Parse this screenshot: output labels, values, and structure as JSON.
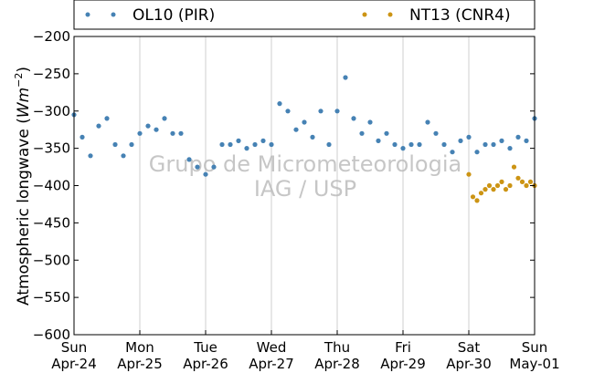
{
  "chart_data": {
    "type": "scatter",
    "ylabel_main": "Atmospheric longwave (",
    "ylabel_unit": "Wm",
    "ylabel_exp": "−2",
    "ylabel_close": ")",
    "ylim": [
      -600,
      -200
    ],
    "yticks": [
      -200,
      -250,
      -300,
      -350,
      -400,
      -450,
      -500,
      -550,
      -600
    ],
    "ytick_labels": [
      "−200",
      "−250",
      "−300",
      "−350",
      "−400",
      "−450",
      "−500",
      "−550",
      "−600"
    ],
    "xlim": [
      "2016-04-24T00:00",
      "2016-05-01T00:00"
    ],
    "xticks": [
      {
        "date": "2016-04-24",
        "day": "Sun",
        "label": "Apr-24"
      },
      {
        "date": "2016-04-25",
        "day": "Mon",
        "label": "Apr-25"
      },
      {
        "date": "2016-04-26",
        "day": "Tue",
        "label": "Apr-26"
      },
      {
        "date": "2016-04-27",
        "day": "Wed",
        "label": "Apr-27"
      },
      {
        "date": "2016-04-28",
        "day": "Thu",
        "label": "Apr-28"
      },
      {
        "date": "2016-04-29",
        "day": "Fri",
        "label": "Apr-29"
      },
      {
        "date": "2016-04-30",
        "day": "Sat",
        "label": "Apr-30"
      },
      {
        "date": "2016-05-01",
        "day": "Sun",
        "label": "May-01"
      }
    ],
    "grid": "vertical",
    "legend_position": "top",
    "watermark": [
      "Grupo de Micrometeorologia",
      "IAG / USP"
    ],
    "series": [
      {
        "name": "OL10 (PIR)",
        "color": "#4682b4",
        "x": [
          "2016-04-24T00:00",
          "2016-04-24T03:00",
          "2016-04-24T06:00",
          "2016-04-24T09:00",
          "2016-04-24T12:00",
          "2016-04-24T15:00",
          "2016-04-24T18:00",
          "2016-04-24T21:00",
          "2016-04-25T00:00",
          "2016-04-25T03:00",
          "2016-04-25T06:00",
          "2016-04-25T09:00",
          "2016-04-25T12:00",
          "2016-04-25T15:00",
          "2016-04-25T18:00",
          "2016-04-25T21:00",
          "2016-04-26T00:00",
          "2016-04-26T03:00",
          "2016-04-26T06:00",
          "2016-04-26T09:00",
          "2016-04-26T12:00",
          "2016-04-26T15:00",
          "2016-04-26T18:00",
          "2016-04-26T21:00",
          "2016-04-27T00:00",
          "2016-04-27T03:00",
          "2016-04-27T06:00",
          "2016-04-27T09:00",
          "2016-04-27T12:00",
          "2016-04-27T15:00",
          "2016-04-27T18:00",
          "2016-04-27T21:00",
          "2016-04-28T00:00",
          "2016-04-28T03:00",
          "2016-04-28T06:00",
          "2016-04-28T09:00",
          "2016-04-28T12:00",
          "2016-04-28T15:00",
          "2016-04-28T18:00",
          "2016-04-28T21:00",
          "2016-04-29T00:00",
          "2016-04-29T03:00",
          "2016-04-29T06:00",
          "2016-04-29T09:00",
          "2016-04-29T12:00",
          "2016-04-29T15:00",
          "2016-04-29T18:00",
          "2016-04-29T21:00",
          "2016-04-30T00:00",
          "2016-04-30T03:00",
          "2016-04-30T06:00",
          "2016-04-30T09:00",
          "2016-04-30T12:00",
          "2016-04-30T15:00",
          "2016-04-30T18:00",
          "2016-04-30T21:00",
          "2016-05-01T00:00"
        ],
        "y": [
          -305,
          -335,
          -360,
          -320,
          -310,
          -345,
          -360,
          -345,
          -330,
          -320,
          -325,
          -310,
          -330,
          -330,
          -365,
          -375,
          -385,
          -375,
          -345,
          -345,
          -340,
          -350,
          -345,
          -340,
          -345,
          -290,
          -300,
          -325,
          -315,
          -335,
          -300,
          -345,
          -300,
          -255,
          -310,
          -330,
          -315,
          -340,
          -330,
          -345,
          -350,
          -345,
          -345,
          -315,
          -330,
          -345,
          -355,
          -340,
          -335,
          -355,
          -345,
          -345,
          -340,
          -350,
          -335,
          -340,
          -310
        ]
      },
      {
        "name": "NT13 (CNR4)",
        "color": "#cc9414",
        "x": [
          "2016-04-30T00:00",
          "2016-04-30T01:30",
          "2016-04-30T03:00",
          "2016-04-30T04:30",
          "2016-04-30T06:00",
          "2016-04-30T07:30",
          "2016-04-30T09:00",
          "2016-04-30T10:30",
          "2016-04-30T12:00",
          "2016-04-30T13:30",
          "2016-04-30T15:00",
          "2016-04-30T16:30",
          "2016-04-30T18:00",
          "2016-04-30T19:30",
          "2016-04-30T21:00",
          "2016-04-30T22:30",
          "2016-05-01T00:00"
        ],
        "y": [
          -385,
          -415,
          -420,
          -410,
          -405,
          -400,
          -405,
          -400,
          -395,
          -405,
          -400,
          -375,
          -390,
          -395,
          -400,
          -395,
          -400
        ]
      }
    ]
  }
}
